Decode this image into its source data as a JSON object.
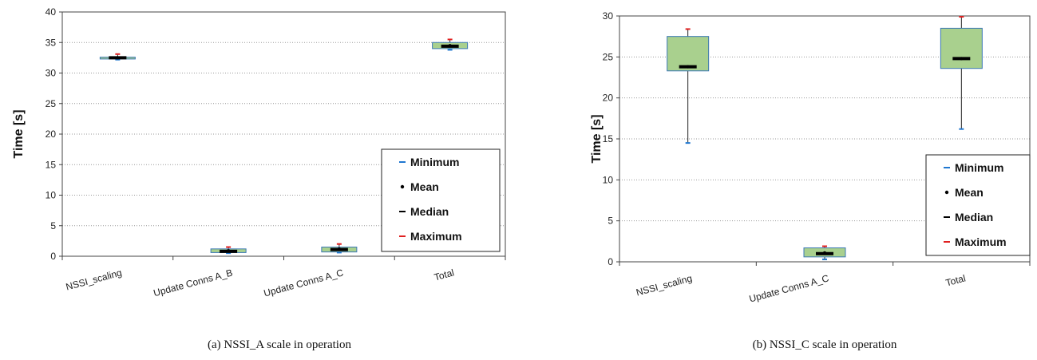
{
  "colors": {
    "box_fill": "#a9d08e",
    "box_stroke": "#3b78b5",
    "minimum": "#1f77d0",
    "mean": "#000000",
    "median": "#000000",
    "maximum": "#e02020",
    "grid": "#999999"
  },
  "chart_data": [
    {
      "type": "box",
      "title": "",
      "xlabel": "",
      "ylabel": "Time [s]",
      "ylim": [
        0,
        40
      ],
      "yticks": [
        0,
        5,
        10,
        15,
        20,
        25,
        30,
        35,
        40
      ],
      "grid": "horizontal dotted",
      "legend_position": "bottom-right",
      "legend": [
        "Minimum",
        "Mean",
        "Median",
        "Maximum"
      ],
      "categories": [
        "NSSI_scaling",
        "Update Conns A_B",
        "Update Conns A_C",
        "Total"
      ],
      "caption": "(a) NSSI_A scale in operation",
      "series": [
        {
          "min": 32.2,
          "q1": 32.3,
          "median": 32.5,
          "mean": 32.5,
          "q3": 32.6,
          "max": 33.1
        },
        {
          "min": 0.5,
          "q1": 0.6,
          "median": 0.8,
          "mean": 0.9,
          "q3": 1.2,
          "max": 1.5
        },
        {
          "min": 0.6,
          "q1": 0.7,
          "median": 1.1,
          "mean": 1.2,
          "q3": 1.5,
          "max": 2.0
        },
        {
          "min": 33.8,
          "q1": 34.0,
          "median": 34.4,
          "mean": 34.5,
          "q3": 35.0,
          "max": 35.5
        }
      ]
    },
    {
      "type": "box",
      "title": "",
      "xlabel": "",
      "ylabel": "Time [s]",
      "ylim": [
        0,
        30
      ],
      "yticks": [
        0,
        5,
        10,
        15,
        20,
        25,
        30
      ],
      "grid": "horizontal dotted",
      "legend_position": "bottom-right",
      "legend": [
        "Minimum",
        "Mean",
        "Median",
        "Maximum"
      ],
      "categories": [
        "NSSI_scaling",
        "Update Conns A_C",
        "Total"
      ],
      "caption": "(b) NSSI_C scale in operation",
      "series": [
        {
          "min": 14.5,
          "q1": 23.3,
          "median": 23.8,
          "mean": 23.8,
          "q3": 27.5,
          "max": 28.4
        },
        {
          "min": 0.3,
          "q1": 0.6,
          "median": 1.0,
          "mean": 1.1,
          "q3": 1.7,
          "max": 1.9
        },
        {
          "min": 16.2,
          "q1": 23.6,
          "median": 24.8,
          "mean": 24.8,
          "q3": 28.5,
          "max": 29.9
        }
      ]
    }
  ]
}
